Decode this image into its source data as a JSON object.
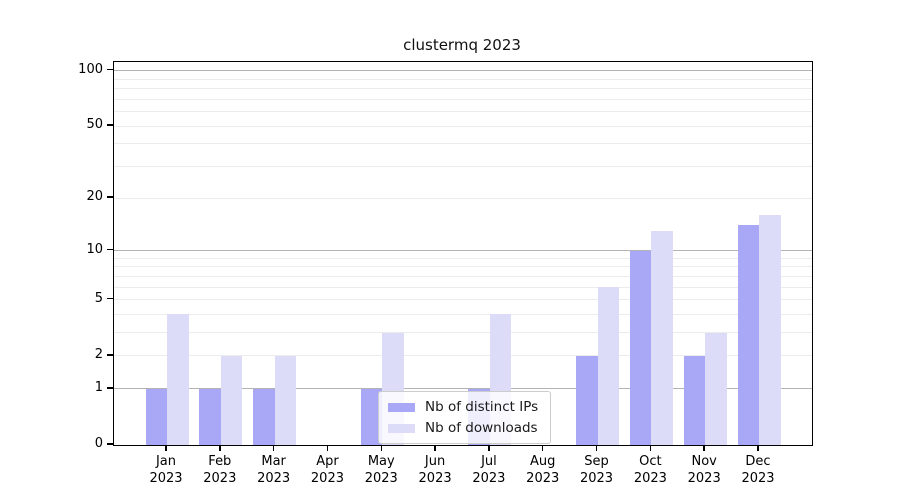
{
  "title": "clustermq 2023",
  "legend": {
    "items": [
      {
        "label": "Nb of distinct IPs",
        "color": "#a8a8f6"
      },
      {
        "label": "Nb of downloads",
        "color": "#dcdcf8"
      }
    ]
  },
  "colors": {
    "distinct_ips_bar": "#a8a8f6",
    "downloads_bar": "#dcdcf8",
    "major_gridline": "#b3b3b3",
    "minor_gridline": "#ececec"
  },
  "chart_data": {
    "type": "bar",
    "title": "clustermq 2023",
    "categories": [
      "Jan 2023",
      "Feb 2023",
      "Mar 2023",
      "Apr 2023",
      "May 2023",
      "Jun 2023",
      "Jul 2023",
      "Aug 2023",
      "Sep 2023",
      "Oct 2023",
      "Nov 2023",
      "Dec 2023"
    ],
    "x_tick_line1": [
      "Jan",
      "Feb",
      "Mar",
      "Apr",
      "May",
      "Jun",
      "Jul",
      "Aug",
      "Sep",
      "Oct",
      "Nov",
      "Dec"
    ],
    "x_tick_line2": [
      "2023",
      "2023",
      "2023",
      "2023",
      "2023",
      "2023",
      "2023",
      "2023",
      "2023",
      "2023",
      "2023",
      "2023"
    ],
    "series": [
      {
        "name": "Nb of distinct IPs",
        "color": "#a8a8f6",
        "values": [
          1,
          1,
          1,
          0,
          1,
          0,
          1,
          0,
          2,
          10,
          2,
          14
        ]
      },
      {
        "name": "Nb of downloads",
        "color": "#dcdcf8",
        "values": [
          4,
          2,
          2,
          0,
          3,
          0,
          4,
          0,
          6,
          13,
          3,
          16
        ]
      }
    ],
    "xlabel": "",
    "ylabel": "",
    "yscale": "log1p",
    "y_ticks": [
      0,
      1,
      2,
      5,
      10,
      20,
      50,
      100
    ],
    "y_minor_gridlines": [
      2,
      3,
      4,
      5,
      6,
      7,
      8,
      9,
      20,
      30,
      40,
      50,
      60,
      70,
      80,
      90
    ],
    "y_major_gridlines": [
      1,
      10,
      100
    ],
    "ylim": [
      0,
      112
    ],
    "grid": true,
    "legend_position": "lower center"
  }
}
